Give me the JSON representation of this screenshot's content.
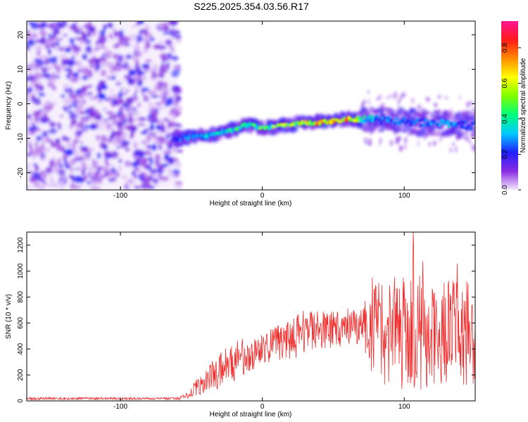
{
  "title": "S225.2025.354.03.56.R17",
  "chart_data": [
    {
      "type": "heatmap",
      "title": "S225.2025.354.03.56.R17",
      "xlabel": "Height of straight line (km)",
      "ylabel": "Frequency (Hz)",
      "xlim": [
        -166,
        150
      ],
      "ylim": [
        -25,
        24
      ],
      "x_ticks": [
        -100,
        0,
        100
      ],
      "y_ticks": [
        -20,
        -10,
        0,
        10,
        20
      ],
      "x_tick_labels": [
        "-100",
        "0",
        "100"
      ],
      "y_tick_labels": [
        "-20",
        "-10",
        "0",
        "10",
        "20"
      ],
      "noise_region_x": [
        -166,
        -60
      ],
      "signal_track": {
        "x": [
          -62,
          -50,
          -40,
          -30,
          -20,
          -10,
          0,
          10,
          20,
          30,
          40,
          50,
          60,
          70,
          80,
          90,
          100,
          110,
          120,
          130,
          140,
          150
        ],
        "freq": [
          -10.5,
          -9.5,
          -9.5,
          -8.5,
          -7.5,
          -6.0,
          -7.0,
          -6.5,
          -6.0,
          -5.5,
          -5.5,
          -5.0,
          -4.5,
          -4.5,
          -4.5,
          -5.0,
          -5.0,
          -5.5,
          -5.5,
          -6.0,
          -6.0,
          -6.5
        ],
        "peak_amplitude": [
          0.25,
          0.3,
          0.35,
          0.4,
          0.45,
          0.55,
          0.5,
          0.6,
          0.65,
          0.7,
          0.85,
          0.9,
          0.8,
          0.5,
          0.3,
          0.3,
          0.3,
          0.3,
          0.3,
          0.35,
          0.3,
          0.3
        ]
      },
      "colorbar": {
        "label": "Normalized spectral amplitude",
        "range": [
          0.0,
          0.95
        ],
        "ticks": [
          "0.0",
          "0.2",
          "0.4",
          "0.6",
          "0.8"
        ],
        "tick_values": [
          0.0,
          0.2,
          0.4,
          0.6,
          0.8
        ],
        "colors": [
          "#f3eafc",
          "#8a2be2",
          "#2020ff",
          "#00c8ff",
          "#00ff7f",
          "#7fff00",
          "#ffff00",
          "#ff8c00",
          "#ff1a1a",
          "#ff1493"
        ]
      }
    },
    {
      "type": "line",
      "xlabel": "Height of straight line (km)",
      "ylabel": "SNR (10 * v/v)",
      "xlim": [
        -166,
        150
      ],
      "ylim": [
        0,
        1300
      ],
      "x_ticks": [
        -100,
        0,
        100
      ],
      "y_ticks": [
        0,
        200,
        400,
        600,
        800,
        1000,
        1200
      ],
      "x_tick_labels": [
        "-100",
        "0",
        "100"
      ],
      "y_tick_labels": [
        "0",
        "200",
        "400",
        "600",
        "800",
        "1000",
        "1200"
      ],
      "series": [
        {
          "name": "SNR",
          "color": "#f03030",
          "x": [
            -166,
            -100,
            -60,
            -55,
            -50,
            -45,
            -40,
            -35,
            -30,
            -25,
            -20,
            -15,
            -10,
            -5,
            0,
            5,
            10,
            15,
            20,
            25,
            30,
            35,
            40,
            45,
            50,
            55,
            60,
            65,
            70,
            75,
            80,
            85,
            90,
            95,
            100,
            105,
            110,
            115,
            120,
            125,
            130,
            135,
            140,
            145,
            150
          ],
          "mean": [
            18,
            18,
            18,
            30,
            70,
            120,
            160,
            200,
            230,
            270,
            300,
            330,
            360,
            390,
            400,
            420,
            440,
            460,
            480,
            500,
            520,
            540,
            545,
            550,
            555,
            560,
            565,
            560,
            555,
            560,
            540,
            520,
            520,
            520,
            520,
            520,
            520,
            520,
            520,
            520,
            520,
            520,
            520,
            520,
            520
          ],
          "amp": [
            10,
            10,
            10,
            20,
            40,
            80,
            100,
            120,
            140,
            150,
            150,
            150,
            150,
            150,
            140,
            140,
            140,
            150,
            160,
            170,
            180,
            160,
            150,
            150,
            150,
            150,
            150,
            150,
            160,
            300,
            420,
            430,
            440,
            440,
            440,
            450,
            460,
            450,
            440,
            430,
            420,
            420,
            420,
            400,
            400
          ],
          "peak_max": 1300
        }
      ]
    }
  ]
}
